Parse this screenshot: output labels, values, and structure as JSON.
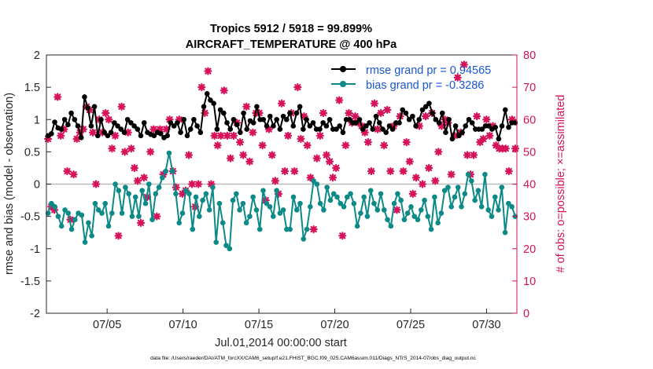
{
  "chart_data": {
    "type": "line",
    "title_line1": "Tropics 5912 / 5918 = 99.899%",
    "title_line2": "AIRCRAFT_TEMPERATURE @ 400 hPa",
    "xlabel": "Jul.01,2014 00:00:00 start",
    "ylabel_left": "rmse and bias (model - observation)",
    "ylabel_right": "# of obs: o=possible; ×=assimilated",
    "footer": "data file: /Users/raeder/DAI/ATM_forcXX/CAM6_setup/f.e21.FHIST_BGC.f09_025.CAM6assim.011/Diags_NTrS_2014-07/obs_diag_output.nc",
    "x_ticks": [
      "07/05",
      "07/10",
      "07/15",
      "07/20",
      "07/25",
      "07/30"
    ],
    "x_tick_days": [
      5,
      10,
      15,
      20,
      25,
      30
    ],
    "xlim": [
      1,
      32
    ],
    "ylim_left": [
      -2,
      2
    ],
    "yticks_left": [
      "-2",
      "-1.5",
      "-1",
      "-0.5",
      "0",
      "0.5",
      "1",
      "1.5",
      "2"
    ],
    "ylim_right": [
      0,
      80
    ],
    "yticks_right": [
      "0",
      "10",
      "20",
      "30",
      "40",
      "50",
      "60",
      "70",
      "80"
    ],
    "legend": {
      "rmse_label": "rmse grand pr = 0.94565",
      "bias_label": "bias grand pr = -0.3286",
      "placement": "top-right"
    },
    "colors": {
      "rmse": "#000000",
      "bias": "#0b8a87",
      "obs": "#d6125a",
      "legend_text": "#1a56d6",
      "zero_line": "#bbbbbb"
    },
    "series": [
      {
        "name": "rmse",
        "values": [
          0.75,
          0.78,
          0.96,
          0.87,
          0.85,
          1.0,
          0.92,
          1.1,
          1.0,
          0.9,
          0.72,
          1.35,
          1.18,
          0.9,
          1.2,
          0.75,
          1.0,
          0.8,
          0.75,
          0.8,
          0.95,
          0.9,
          0.85,
          0.8,
          1.0,
          0.95,
          0.9,
          0.85,
          0.75,
          0.95,
          0.8,
          0.77,
          0.75,
          0.8,
          0.78,
          0.72,
          0.75,
          0.95,
          0.9,
          0.95,
          0.8,
          1.0,
          0.75,
          0.85,
          1.0,
          0.9,
          0.8,
          1.2,
          1.4,
          1.3,
          1.25,
          0.85,
          1.15,
          1.1,
          0.95,
          0.85,
          1.0,
          0.92,
          0.8,
          1.1,
          0.85,
          0.98,
          0.95,
          1.2,
          1.0,
          1.0,
          0.9,
          1.05,
          0.9,
          1.0,
          0.85,
          1.05,
          1.0,
          1.1,
          0.9,
          1.1,
          1.2,
          0.85,
          1.0,
          0.9,
          0.95,
          0.85,
          0.85,
          0.95,
          0.9,
          1.0,
          0.85,
          0.85,
          0.9,
          0.8,
          1.0,
          1.0,
          0.95,
          0.95,
          1.0,
          0.85,
          0.9,
          0.95,
          0.85,
          1.05,
          0.95,
          0.85,
          0.8,
          0.9,
          0.85,
          0.95,
          0.95,
          1.15,
          1.1,
          1.0,
          1.05,
          0.9,
          1.0,
          1.15,
          1.2,
          1.25,
          1.1,
          1.0,
          0.95,
          1.1,
          0.8,
          1.0,
          0.7,
          0.9,
          0.75,
          0.8,
          0.9,
          1.0,
          0.95,
          0.85,
          0.85,
          0.85,
          0.9,
          0.9,
          0.85,
          0.88,
          0.7,
          0.9,
          1.15,
          0.88,
          0.95,
          0.95
        ]
      },
      {
        "name": "bias",
        "values": [
          -0.45,
          -0.3,
          -0.35,
          -0.5,
          -0.65,
          -0.4,
          -0.45,
          -0.7,
          -0.55,
          -0.45,
          -0.48,
          -0.9,
          -0.6,
          -0.8,
          -0.3,
          -0.4,
          -0.45,
          -0.3,
          -0.65,
          -0.45,
          0.0,
          -0.1,
          -0.45,
          -0.05,
          -0.15,
          -0.5,
          -0.2,
          -0.5,
          -0.1,
          -0.3,
          0.0,
          -0.55,
          -0.15,
          -0.05,
          0.1,
          0.2,
          0.48,
          0.2,
          -0.15,
          -0.6,
          -0.45,
          -0.1,
          -0.15,
          -0.7,
          -0.2,
          -0.5,
          -0.25,
          -0.15,
          -0.4,
          -0.05,
          -0.9,
          -0.3,
          -0.6,
          -0.95,
          -1.0,
          -0.25,
          -0.15,
          -0.4,
          -0.3,
          -0.6,
          -0.5,
          -0.2,
          -0.4,
          -0.7,
          -0.1,
          -0.3,
          -0.35,
          -0.5,
          -0.1,
          -0.45,
          -0.4,
          -0.7,
          -0.7,
          -0.2,
          -0.4,
          -0.3,
          -0.85,
          -0.7,
          -0.35,
          0.05,
          0.0,
          -0.3,
          -0.4,
          -0.05,
          -0.25,
          -0.15,
          -0.2,
          -0.3,
          -0.35,
          -0.2,
          -0.15,
          -0.3,
          -0.65,
          -0.45,
          -0.2,
          -0.5,
          -0.1,
          -0.3,
          -0.4,
          -0.15,
          -0.4,
          -0.55,
          -0.65,
          -0.3,
          -0.15,
          -0.25,
          -0.55,
          -0.45,
          -0.35,
          -0.5,
          -0.55,
          -0.4,
          -0.25,
          -0.5,
          -0.7,
          -0.2,
          -0.6,
          -0.45,
          -0.1,
          -0.05,
          -0.35,
          -0.2,
          -0.05,
          -0.35,
          -0.15,
          0.15,
          0.05,
          -0.25,
          -0.1,
          -0.35,
          0.15,
          -0.4,
          -0.5,
          -0.2,
          -0.4,
          -0.05,
          -0.75,
          -0.3,
          -0.35,
          -0.5
        ]
      },
      {
        "name": "obs_assimilated",
        "values": [
          54,
          33,
          32,
          67,
          55,
          57,
          44,
          29,
          43,
          54,
          56,
          57,
          64,
          63,
          56,
          40,
          60,
          56,
          62,
          60,
          51,
          55,
          24,
          64,
          50,
          56,
          51,
          45,
          41,
          28,
          42,
          36,
          50,
          57,
          30,
          57,
          43,
          57,
          60,
          44,
          39,
          60,
          37,
          38,
          49,
          40,
          33,
          40,
          70,
          62,
          75,
          40,
          55,
          52,
          55,
          69,
          55,
          48,
          55,
          59,
          53,
          49,
          64,
          47,
          56,
          62,
          62,
          52,
          35,
          57,
          49,
          41,
          37,
          65,
          44,
          55,
          62,
          44,
          70,
          54,
          61,
          52,
          42,
          26,
          48,
          55,
          62,
          49,
          47,
          42,
          45,
          66,
          24,
          52,
          62,
          59,
          61,
          59,
          58,
          56,
          53,
          44,
          65,
          57,
          62,
          52,
          63,
          44,
          58,
          32,
          61,
          44,
          53,
          47,
          37,
          42,
          58,
          40,
          61,
          45,
          62,
          41,
          50,
          58,
          60,
          59,
          43,
          55,
          73,
          56,
          77,
          49,
          43,
          49,
          61,
          53,
          54,
          60,
          55,
          58,
          52,
          51,
          51,
          51,
          44,
          60,
          51
        ]
      }
    ]
  }
}
